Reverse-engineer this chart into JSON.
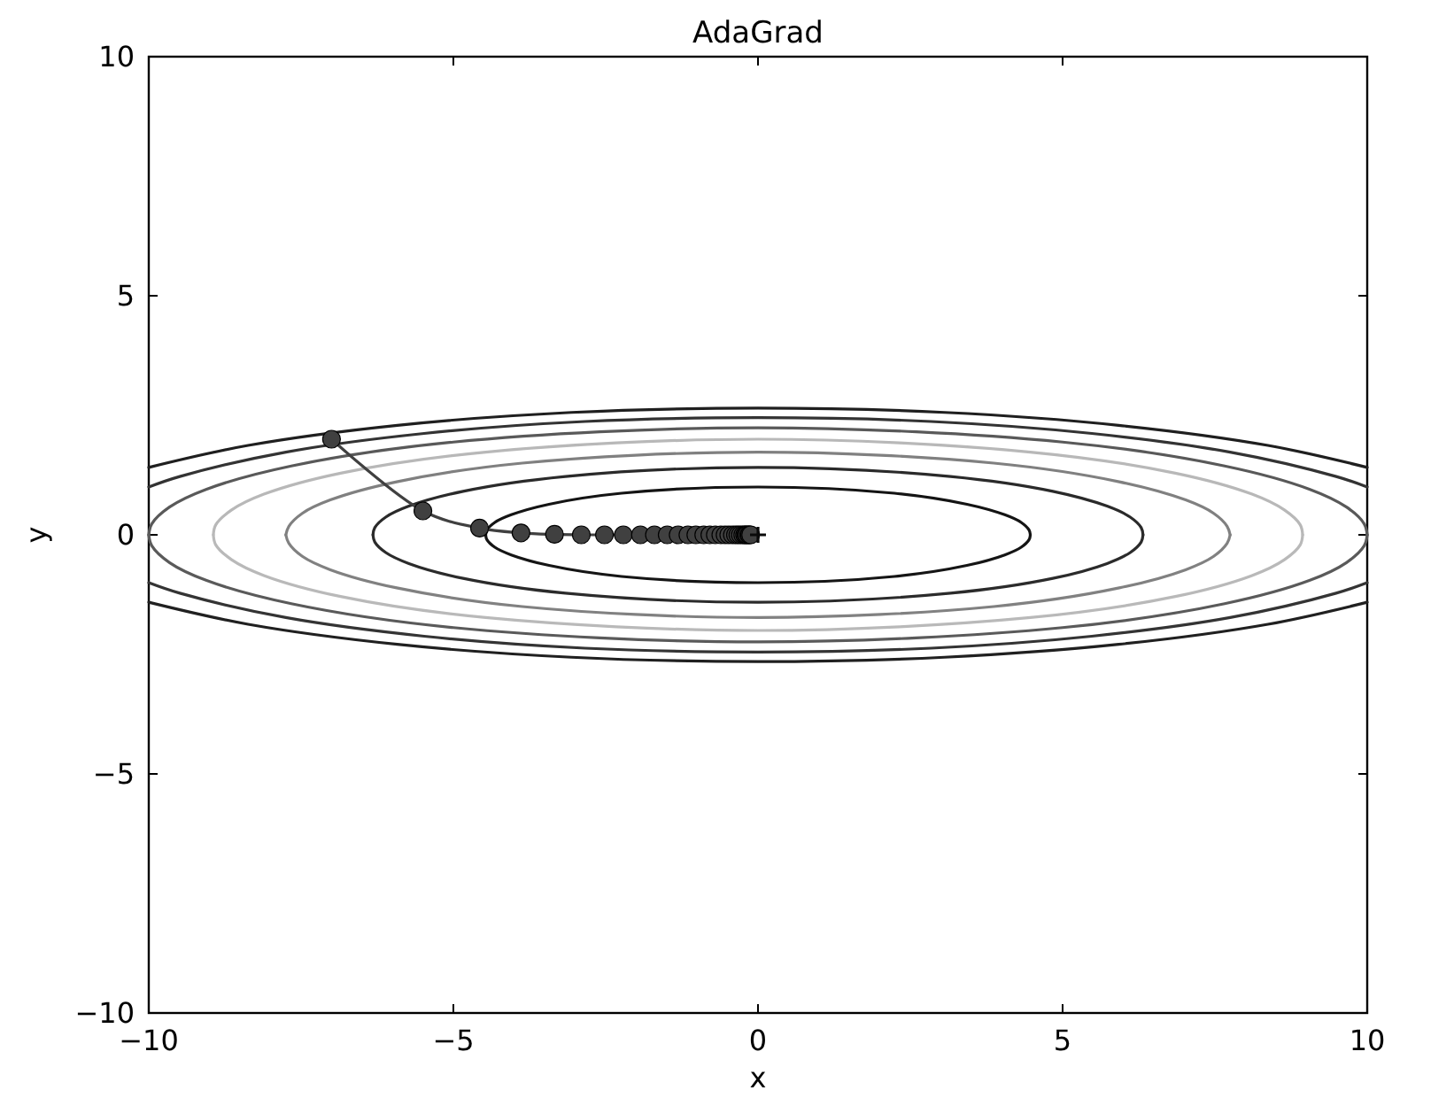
{
  "chart_data": {
    "type": "line",
    "title": "AdaGrad",
    "xlabel": "x",
    "ylabel": "y",
    "xlim": [
      -10,
      10
    ],
    "ylim": [
      -10,
      10
    ],
    "xticks": [
      -10,
      -5,
      0,
      5,
      10
    ],
    "yticks": [
      -10,
      -5,
      0,
      5,
      10
    ],
    "series": [
      {
        "color": "#141414",
        "x": [
          -4.47,
          -4.45,
          -4.32,
          -4.05,
          -3.43,
          -2.24,
          0,
          2.24,
          3.43,
          4.05,
          4.32,
          4.45,
          4.47
        ],
        "values": [
          0,
          0.1,
          0.26,
          0.42,
          0.64,
          0.87,
          1,
          0.87,
          0.64,
          0.42,
          0.26,
          0.1,
          0
        ]
      },
      {
        "color": "#151515",
        "x": [
          -4.47,
          -4.45,
          -4.32,
          -4.05,
          -3.43,
          -2.24,
          0,
          2.24,
          3.43,
          4.05,
          4.32,
          4.45,
          4.47
        ],
        "values": [
          0,
          -0.1,
          -0.26,
          -0.42,
          -0.64,
          -0.87,
          -1,
          -0.87,
          -0.64,
          -0.42,
          -0.26,
          -0.1,
          0
        ]
      },
      {
        "color": "#2a2a2a",
        "x": [
          -6.32,
          -6.29,
          -6.11,
          -5.73,
          -4.84,
          -3.16,
          0,
          3.16,
          4.84,
          5.73,
          6.11,
          6.29,
          6.32
        ],
        "values": [
          0,
          0.15,
          0.37,
          0.6,
          0.91,
          1.22,
          1.41,
          1.22,
          0.91,
          0.6,
          0.37,
          0.15,
          0
        ]
      },
      {
        "color": "#2b2b2b",
        "x": [
          -6.32,
          -6.29,
          -6.11,
          -5.73,
          -4.84,
          -3.16,
          0,
          3.16,
          4.84,
          5.73,
          6.11,
          6.29,
          6.32
        ],
        "values": [
          0,
          -0.15,
          -0.37,
          -0.6,
          -0.91,
          -1.22,
          -1.41,
          -1.22,
          -0.91,
          -0.6,
          -0.37,
          -0.15,
          0
        ]
      },
      {
        "color": "#808080",
        "x": [
          -7.75,
          -7.7,
          -7.48,
          -7.02,
          -5.93,
          -3.87,
          0,
          3.87,
          5.93,
          7.02,
          7.48,
          7.7,
          7.75
        ],
        "values": [
          0,
          0.18,
          0.45,
          0.73,
          1.11,
          1.5,
          1.73,
          1.5,
          1.11,
          0.73,
          0.45,
          0.18,
          0
        ]
      },
      {
        "color": "#818181",
        "x": [
          -7.75,
          -7.7,
          -7.48,
          -7.02,
          -5.93,
          -3.87,
          0,
          3.87,
          5.93,
          7.02,
          7.48,
          7.7,
          7.75
        ],
        "values": [
          0,
          -0.18,
          -0.45,
          -0.73,
          -1.11,
          -1.5,
          -1.73,
          -1.5,
          -1.11,
          -0.73,
          -0.45,
          -0.18,
          0
        ]
      },
      {
        "color": "#b8b8b8",
        "x": [
          -8.94,
          -8.9,
          -8.64,
          -8.11,
          -6.85,
          -4.47,
          0,
          4.47,
          6.85,
          8.11,
          8.64,
          8.9,
          8.94
        ],
        "values": [
          0,
          0.21,
          0.52,
          0.85,
          1.29,
          1.73,
          2,
          1.73,
          1.29,
          0.85,
          0.52,
          0.21,
          0
        ]
      },
      {
        "color": "#b9b9b9",
        "x": [
          -8.94,
          -8.9,
          -8.64,
          -8.11,
          -6.85,
          -4.47,
          0,
          4.47,
          6.85,
          8.11,
          8.64,
          8.9,
          8.94
        ],
        "values": [
          0,
          -0.21,
          -0.52,
          -0.85,
          -1.29,
          -1.73,
          -2,
          -1.73,
          -1.29,
          -0.85,
          -0.52,
          -0.21,
          0
        ]
      },
      {
        "color": "#595959",
        "x": [
          -10,
          -9.95,
          -9.66,
          -9.06,
          -7.66,
          -5,
          0,
          5,
          7.66,
          9.06,
          9.66,
          9.95,
          10
        ],
        "values": [
          0,
          0.23,
          0.58,
          0.95,
          1.44,
          1.94,
          2.24,
          1.94,
          1.44,
          0.95,
          0.58,
          0.23,
          0
        ]
      },
      {
        "color": "#5a5a5a",
        "x": [
          -10,
          -9.95,
          -9.66,
          -9.06,
          -7.66,
          -5,
          0,
          5,
          7.66,
          9.06,
          9.66,
          9.95,
          10
        ],
        "values": [
          0,
          -0.23,
          -0.58,
          -0.95,
          -1.44,
          -1.94,
          -2.24,
          -1.94,
          -1.44,
          -0.95,
          -0.58,
          -0.23,
          0
        ]
      },
      {
        "color": "#333333",
        "x": [
          -10,
          -9.49,
          -7.75,
          -5.48,
          -2.84,
          0,
          2.84,
          5.48,
          7.75,
          9.49,
          10
        ],
        "values": [
          1,
          1.22,
          1.73,
          2.12,
          2.37,
          2.45,
          2.37,
          2.12,
          1.73,
          1.22,
          1
        ]
      },
      {
        "color": "#343434",
        "x": [
          -10,
          -9.49,
          -7.75,
          -5.48,
          -2.84,
          0,
          2.84,
          5.48,
          7.75,
          9.49,
          10
        ],
        "values": [
          -1,
          -1.22,
          -1.73,
          -2.12,
          -2.37,
          -2.45,
          -2.37,
          -2.12,
          -1.73,
          -1.22,
          -1
        ]
      },
      {
        "color": "#1f1f1f",
        "x": [
          -10,
          -8.37,
          -5.92,
          -3.06,
          0,
          3.06,
          5.92,
          8.37,
          10
        ],
        "values": [
          1.41,
          1.87,
          2.29,
          2.56,
          2.65,
          2.56,
          2.29,
          1.87,
          1.41
        ]
      },
      {
        "color": "#202020",
        "x": [
          -10,
          -8.37,
          -5.92,
          -3.06,
          0,
          3.06,
          5.92,
          8.37,
          10
        ],
        "values": [
          -1.41,
          -1.87,
          -2.29,
          -2.56,
          -2.65,
          -2.56,
          -2.29,
          -1.87,
          -1.41
        ]
      },
      {
        "color": "#404040",
        "marker": "circle",
        "x": [
          -7,
          -5.5,
          -4.57,
          -3.89,
          -3.34,
          -2.9,
          -2.52,
          -2.21,
          -1.93,
          -1.7,
          -1.49,
          -1.31,
          -1.15,
          -1.02,
          -0.89,
          -0.79,
          -0.7,
          -0.61,
          -0.54,
          -0.48,
          -0.42,
          -0.37,
          -0.33,
          -0.29,
          -0.25,
          -0.22,
          -0.2,
          -0.18,
          -0.15,
          -0.14,
          -0.12
        ],
        "values": [
          2,
          0.5,
          0.14,
          0.04,
          0.01,
          0,
          0,
          0,
          0,
          0,
          0,
          0,
          0,
          0,
          0,
          0,
          0,
          0,
          0,
          0,
          0,
          0,
          0,
          0,
          0,
          0,
          0,
          0,
          0,
          0,
          0
        ]
      },
      {
        "type": "scatter",
        "color": "#0a0a0a",
        "marker": "cross",
        "x": [
          0
        ],
        "values": [
          0
        ]
      }
    ]
  }
}
